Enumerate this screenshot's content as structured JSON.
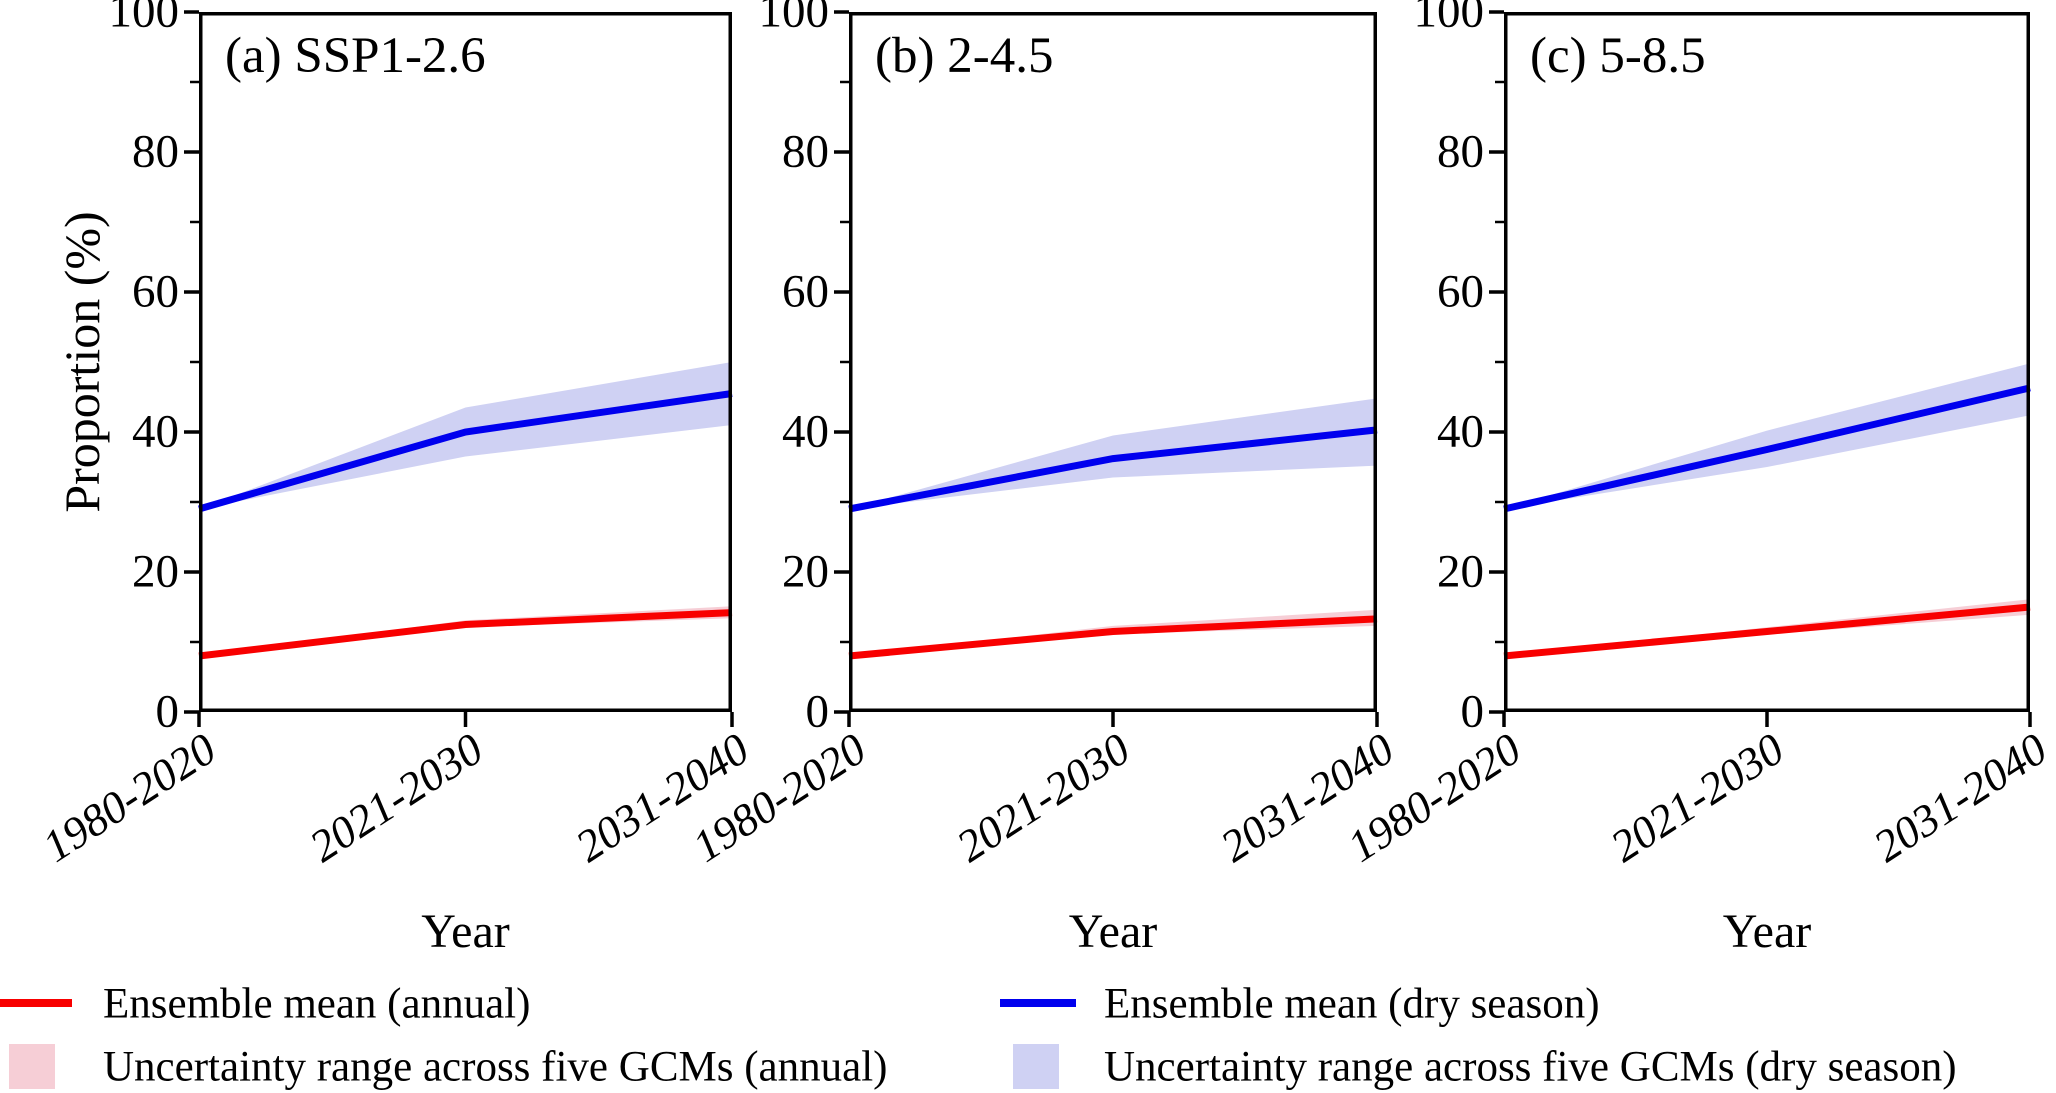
{
  "figure": {
    "y_axis_title": "Proportion (%)",
    "x_axis_title": "Year",
    "colors": {
      "annual_line": "#f80000",
      "annual_band": "#f6ced6",
      "dry_line": "#0000ee",
      "dry_band": "#cfd1f3",
      "axis": "#000000"
    }
  },
  "legend": {
    "items": [
      {
        "label": "Ensemble mean (annual)",
        "swatch": "line",
        "color": "#f80000"
      },
      {
        "label": "Uncertainty range across five GCMs (annual)",
        "swatch": "box",
        "color": "#f6ced6"
      },
      {
        "label": "Ensemble mean (dry season)",
        "swatch": "line",
        "color": "#0000ee"
      },
      {
        "label": "Uncertainty range across five GCMs (dry season)",
        "swatch": "box",
        "color": "#cfd1f3"
      }
    ]
  },
  "chart_data": [
    {
      "type": "line",
      "title": "(a) SSP1-2.6",
      "categories": [
        "1980-2020",
        "2021-2030",
        "2031-2040"
      ],
      "xlabel": "Year",
      "ylabel": "Proportion (%)",
      "ylim": [
        0,
        100
      ],
      "y_major_ticks": [
        0,
        20,
        40,
        60,
        80,
        100
      ],
      "y_minor_step": 10,
      "grid": false,
      "series": [
        {
          "name": "Uncertainty range across five GCMs (annual)",
          "kind": "band",
          "color": "#f6ced6",
          "lower": [
            8,
            12.1,
            13.4
          ],
          "upper": [
            8,
            13.1,
            15.1
          ]
        },
        {
          "name": "Uncertainty range across five GCMs (dry season)",
          "kind": "band",
          "color": "#cfd1f3",
          "lower": [
            29,
            36.5,
            41.0
          ],
          "upper": [
            29,
            43.5,
            50.0
          ]
        },
        {
          "name": "Ensemble mean (annual)",
          "kind": "line",
          "color": "#f80000",
          "values": [
            8,
            12.5,
            14.2
          ]
        },
        {
          "name": "Ensemble mean (dry season)",
          "kind": "line",
          "color": "#0000ee",
          "values": [
            29,
            40,
            45.5
          ]
        }
      ]
    },
    {
      "type": "line",
      "title": "(b) 2-4.5",
      "categories": [
        "1980-2020",
        "2021-2030",
        "2031-2040"
      ],
      "xlabel": "Year",
      "ylabel": "Proportion (%)",
      "ylim": [
        0,
        100
      ],
      "y_major_ticks": [
        0,
        20,
        40,
        60,
        80,
        100
      ],
      "y_minor_step": 10,
      "grid": false,
      "series": [
        {
          "name": "Uncertainty range across five GCMs (annual)",
          "kind": "band",
          "color": "#f6ced6",
          "lower": [
            8,
            11.1,
            12.3
          ],
          "upper": [
            8,
            12.3,
            14.6
          ]
        },
        {
          "name": "Uncertainty range across five GCMs (dry season)",
          "kind": "band",
          "color": "#cfd1f3",
          "lower": [
            29,
            33.5,
            35.2
          ],
          "upper": [
            29,
            39.5,
            44.8
          ]
        },
        {
          "name": "Ensemble mean (annual)",
          "kind": "line",
          "color": "#f80000",
          "values": [
            8,
            11.5,
            13.3
          ]
        },
        {
          "name": "Ensemble mean (dry season)",
          "kind": "line",
          "color": "#0000ee",
          "values": [
            29,
            36.2,
            40.3
          ]
        }
      ]
    },
    {
      "type": "line",
      "title": "(c) 5-8.5",
      "categories": [
        "1980-2020",
        "2021-2030",
        "2031-2040"
      ],
      "xlabel": "Year",
      "ylabel": "Proportion (%)",
      "ylim": [
        0,
        100
      ],
      "y_major_ticks": [
        0,
        20,
        40,
        60,
        80,
        100
      ],
      "y_minor_step": 10,
      "grid": false,
      "series": [
        {
          "name": "Uncertainty range across five GCMs (annual)",
          "kind": "band",
          "color": "#f6ced6",
          "lower": [
            8,
            11.1,
            13.9
          ],
          "upper": [
            8,
            12.1,
            16.1
          ]
        },
        {
          "name": "Uncertainty range across five GCMs (dry season)",
          "kind": "band",
          "color": "#cfd1f3",
          "lower": [
            29,
            35.0,
            42.4
          ],
          "upper": [
            29,
            40.2,
            49.8
          ]
        },
        {
          "name": "Ensemble mean (annual)",
          "kind": "line",
          "color": "#f80000",
          "values": [
            8,
            11.5,
            15.0
          ]
        },
        {
          "name": "Ensemble mean (dry season)",
          "kind": "line",
          "color": "#0000ee",
          "values": [
            29,
            37.5,
            46.3
          ]
        }
      ]
    }
  ]
}
